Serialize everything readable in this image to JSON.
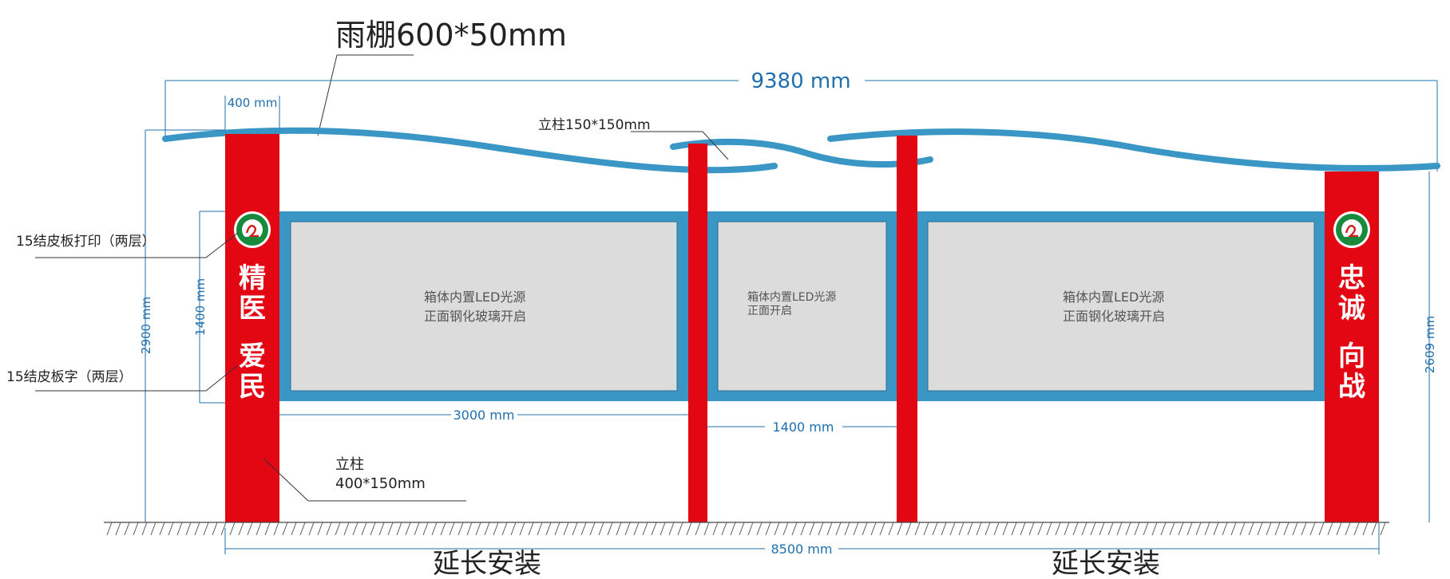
{
  "title": "雨棚600*50mm",
  "dims": {
    "total_width": "9380 mm",
    "col_width": "400 mm",
    "height_total": "2900 mm",
    "panel_height": "1400 mm",
    "right_height": "2609 mm",
    "panel_left_width": "3000 mm",
    "panel_mid_width": "1400 mm",
    "base_width": "8500 mm"
  },
  "labels": {
    "pillar_small": "立柱150*150mm",
    "leather_print": "15结皮板打印（两层）",
    "leather_chars": "15结皮板字（两层）",
    "pillar_main_line1": "立柱",
    "pillar_main_line2": "400*150mm",
    "extend_left": "延长安装",
    "extend_right": "延长安装"
  },
  "panels": {
    "left": {
      "line1": "箱体内置LED光源",
      "line2": "正面钢化玻璃开启"
    },
    "mid": {
      "line1": "箱体内置LED光源",
      "line2": "正面开启"
    },
    "right": {
      "line1": "箱体内置LED光源",
      "line2": "正面钢化玻璃开启"
    }
  },
  "columns": {
    "left_chars": [
      "精",
      "医",
      "爱",
      "民"
    ],
    "right_chars": [
      "忠",
      "诚",
      "向",
      "战"
    ]
  },
  "icons": {
    "logo": "emblem-logo-icon"
  },
  "colors": {
    "post_red": "#e30613",
    "frame_blue": "#3a96c4",
    "panel_gray": "#dcdcdc",
    "dimension_blue": "#1f6fae"
  }
}
